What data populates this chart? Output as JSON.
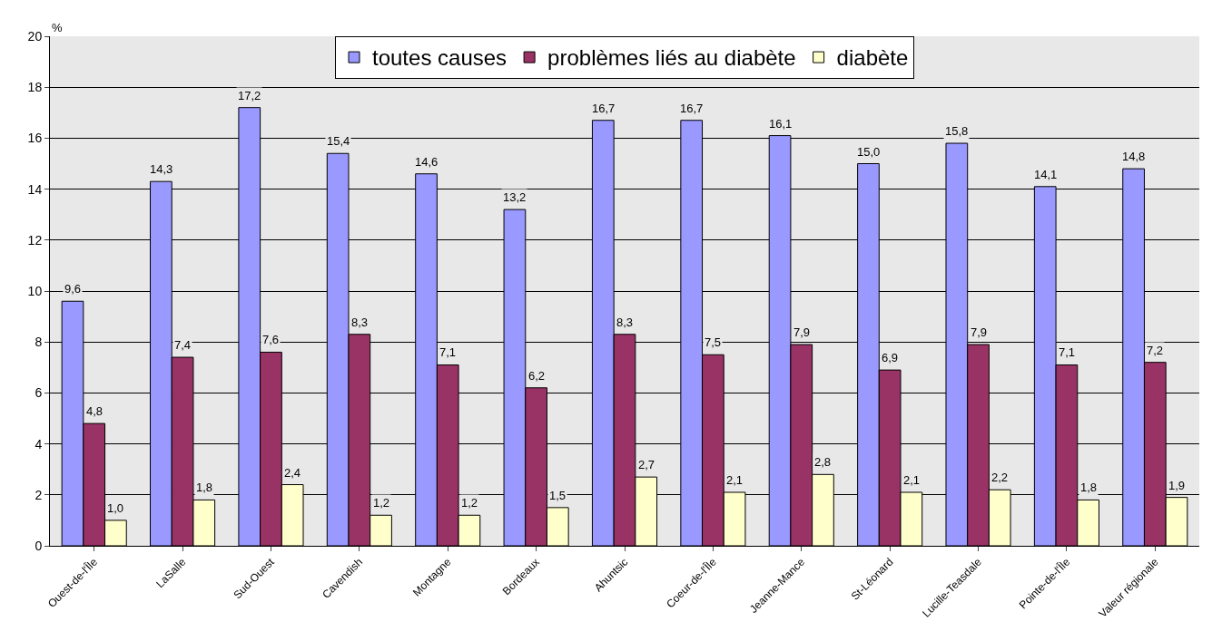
{
  "chart_data": {
    "type": "bar",
    "ylabel": "%",
    "categories": [
      "Ouest-de-l'Île",
      "LaSalle",
      "Sud-Ouest",
      "Cavendish",
      "Montagne",
      "Bordeaux",
      "Ahuntsic",
      "Coeur-de-l'Île",
      "Jeanne-Mance",
      "St-Léonard",
      "Lucille-Teasdale",
      "Pointe-de-l'Île",
      "Valeur régionale"
    ],
    "series": [
      {
        "name": "toutes causes",
        "color": "#9999ff",
        "values": [
          9.6,
          14.3,
          17.2,
          15.4,
          14.6,
          13.2,
          16.7,
          16.7,
          16.1,
          15.0,
          15.8,
          14.1,
          14.8
        ],
        "value_labels": [
          "9,6",
          "14,3",
          "17,2",
          "15,4",
          "14,6",
          "13,2",
          "16,7",
          "16,7",
          "16,1",
          "15,0",
          "15,8",
          "14,1",
          "14,8"
        ]
      },
      {
        "name": "problèmes liés au diabète",
        "color": "#993366",
        "values": [
          4.8,
          7.4,
          7.6,
          8.3,
          7.1,
          6.2,
          8.3,
          7.5,
          7.9,
          6.9,
          7.9,
          7.1,
          7.2
        ],
        "value_labels": [
          "4,8",
          "7,4",
          "7,6",
          "8,3",
          "7,1",
          "6,2",
          "8,3",
          "7,5",
          "7,9",
          "6,9",
          "7,9",
          "7,1",
          "7,2"
        ]
      },
      {
        "name": "diabète",
        "color": "#ffffcc",
        "values": [
          1.0,
          1.8,
          2.4,
          1.2,
          1.2,
          1.5,
          2.7,
          2.1,
          2.8,
          2.1,
          2.2,
          1.8,
          1.9
        ],
        "value_labels": [
          "1,0",
          "1,8",
          "2,4",
          "1,2",
          "1,2",
          "1,5",
          "2,7",
          "2,1",
          "2,8",
          "2,1",
          "2,2",
          "1,8",
          "1,9"
        ]
      }
    ],
    "ylim": [
      0,
      20
    ],
    "yticks": [
      0,
      2,
      4,
      6,
      8,
      10,
      12,
      14,
      16,
      18,
      20
    ],
    "grid": "y",
    "legend": "top"
  }
}
